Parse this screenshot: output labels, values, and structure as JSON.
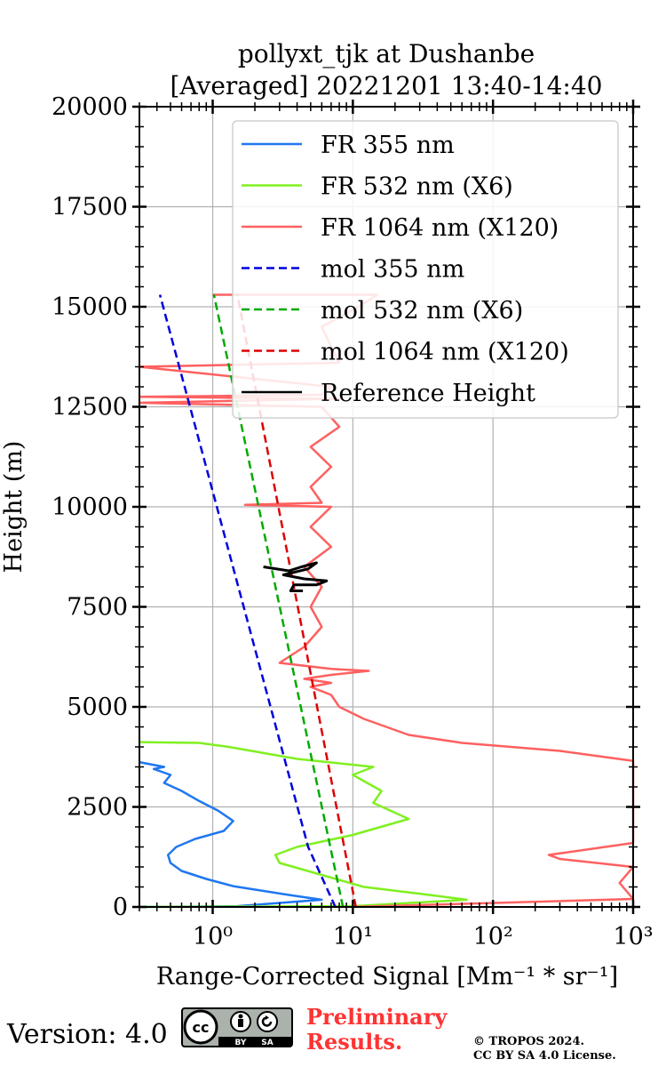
{
  "chart_data": {
    "type": "line",
    "title": [
      "pollyxt_tjk at Dushanbe",
      "[Averaged] 20221201 13:40-14:40"
    ],
    "xlabel": "Range-Corrected Signal [Mm⁻¹ * sr⁻¹]",
    "ylabel": "Height (m)",
    "xscale": "log",
    "xlim": [
      0.3,
      1000
    ],
    "ylim": [
      0,
      20000
    ],
    "xticks": [
      {
        "value": 1,
        "label": "10⁰"
      },
      {
        "value": 10,
        "label": "10¹"
      },
      {
        "value": 100,
        "label": "10²"
      },
      {
        "value": 1000,
        "label": "10³"
      }
    ],
    "yticks": [
      0,
      2500,
      5000,
      7500,
      10000,
      12500,
      15000,
      17500,
      20000
    ],
    "grid": true,
    "legend_position": "top-right",
    "series": [
      {
        "name": "FR 355 nm",
        "color": "#1f77f0",
        "style": "solid",
        "points": [
          [
            0.3,
            0
          ],
          [
            1.5,
            20
          ],
          [
            6,
            180
          ],
          [
            3.5,
            300
          ],
          [
            1.4,
            520
          ],
          [
            0.9,
            700
          ],
          [
            0.6,
            900
          ],
          [
            0.5,
            1100
          ],
          [
            0.48,
            1300
          ],
          [
            0.55,
            1500
          ],
          [
            0.75,
            1700
          ],
          [
            1.2,
            1900
          ],
          [
            1.4,
            2150
          ],
          [
            1.1,
            2400
          ],
          [
            0.8,
            2650
          ],
          [
            0.6,
            2900
          ],
          [
            0.45,
            3100
          ],
          [
            0.5,
            3300
          ],
          [
            0.38,
            3450
          ],
          [
            0.45,
            3500
          ],
          [
            0.32,
            3600
          ],
          [
            0.3,
            3620
          ]
        ]
      },
      {
        "name": "FR 532 nm (X6)",
        "color": "#80f020",
        "style": "solid",
        "points": [
          [
            0.3,
            0
          ],
          [
            10,
            20
          ],
          [
            65,
            180
          ],
          [
            30,
            330
          ],
          [
            12,
            500
          ],
          [
            6,
            800
          ],
          [
            3,
            1100
          ],
          [
            2.8,
            1300
          ],
          [
            4,
            1500
          ],
          [
            10,
            1800
          ],
          [
            25,
            2200
          ],
          [
            14,
            2600
          ],
          [
            16,
            2900
          ],
          [
            10,
            3300
          ],
          [
            14,
            3500
          ],
          [
            4,
            3700
          ],
          [
            1.3,
            4000
          ],
          [
            0.8,
            4100
          ],
          [
            0.3,
            4120
          ]
        ]
      },
      {
        "name": "FR 1064 nm (X120)",
        "color": "#ff6060",
        "style": "solid",
        "points": [
          [
            10,
            0
          ],
          [
            1000,
            200
          ],
          [
            800,
            600
          ],
          [
            1000,
            1000
          ],
          [
            300,
            1200
          ],
          [
            250,
            1300
          ],
          [
            1000,
            1600
          ],
          [
            1000,
            3650
          ],
          [
            300,
            3900
          ],
          [
            60,
            4100
          ],
          [
            25,
            4300
          ],
          [
            12,
            4700
          ],
          [
            8,
            5000
          ],
          [
            7,
            5300
          ],
          [
            5,
            5500
          ],
          [
            7,
            5600
          ],
          [
            4.5,
            5700
          ],
          [
            7,
            5800
          ],
          [
            13,
            5900
          ],
          [
            7,
            5950
          ],
          [
            3,
            6100
          ],
          [
            4.5,
            6500
          ],
          [
            6,
            7000
          ],
          [
            5,
            7500
          ],
          [
            6,
            8000
          ],
          [
            4.5,
            8500
          ],
          [
            7,
            9000
          ],
          [
            5,
            9500
          ],
          [
            7,
            10000
          ],
          [
            1.7,
            10050
          ],
          [
            6,
            10100
          ],
          [
            5,
            10500
          ],
          [
            7,
            11000
          ],
          [
            5,
            11500
          ],
          [
            8,
            12000
          ],
          [
            6,
            12500
          ],
          [
            0.3,
            12600
          ],
          [
            8,
            12700
          ],
          [
            0.3,
            12750
          ],
          [
            6,
            12800
          ],
          [
            7,
            13000
          ],
          [
            0.3,
            13500
          ],
          [
            8,
            13600
          ],
          [
            7,
            14000
          ],
          [
            6,
            14500
          ],
          [
            11,
            15000
          ],
          [
            15,
            15300
          ],
          [
            1.0,
            15300
          ]
        ]
      },
      {
        "name": "mol 355 nm",
        "color": "#0000dd",
        "style": "dashed",
        "points": [
          [
            7.5,
            0
          ],
          [
            4.8,
            1500
          ],
          [
            0.42,
            15300
          ]
        ]
      },
      {
        "name": "mol 532 nm (X6)",
        "color": "#00aa00",
        "style": "dashed",
        "points": [
          [
            8.5,
            0
          ],
          [
            1.02,
            15300
          ]
        ]
      },
      {
        "name": "mol 1064 nm (X120)",
        "color": "#dd0000",
        "style": "dashed",
        "points": [
          [
            10.5,
            0
          ],
          [
            1.5,
            15300
          ]
        ]
      },
      {
        "name": "Reference Height",
        "color": "#000000",
        "style": "solid",
        "points": [
          [
            2.3,
            8500
          ],
          [
            3.5,
            8400
          ],
          [
            4.3,
            8500
          ],
          [
            5.5,
            8600
          ],
          [
            4.8,
            8450
          ],
          [
            3.2,
            8300
          ],
          [
            4.5,
            8200
          ],
          [
            6.5,
            8150
          ],
          [
            5.5,
            8050
          ],
          [
            3.8,
            8050
          ],
          [
            3.6,
            7900
          ],
          [
            4.4,
            7900
          ]
        ]
      }
    ]
  },
  "footer": {
    "version": "Version: 4.0",
    "cc_text": "cc",
    "cc_by": "BY",
    "cc_sa": "SA",
    "preliminary_line1": "Preliminary",
    "preliminary_line2": "Results.",
    "copyright_line1": "© TROPOS 2024.",
    "copyright_line2": "CC BY SA 4.0 License."
  }
}
